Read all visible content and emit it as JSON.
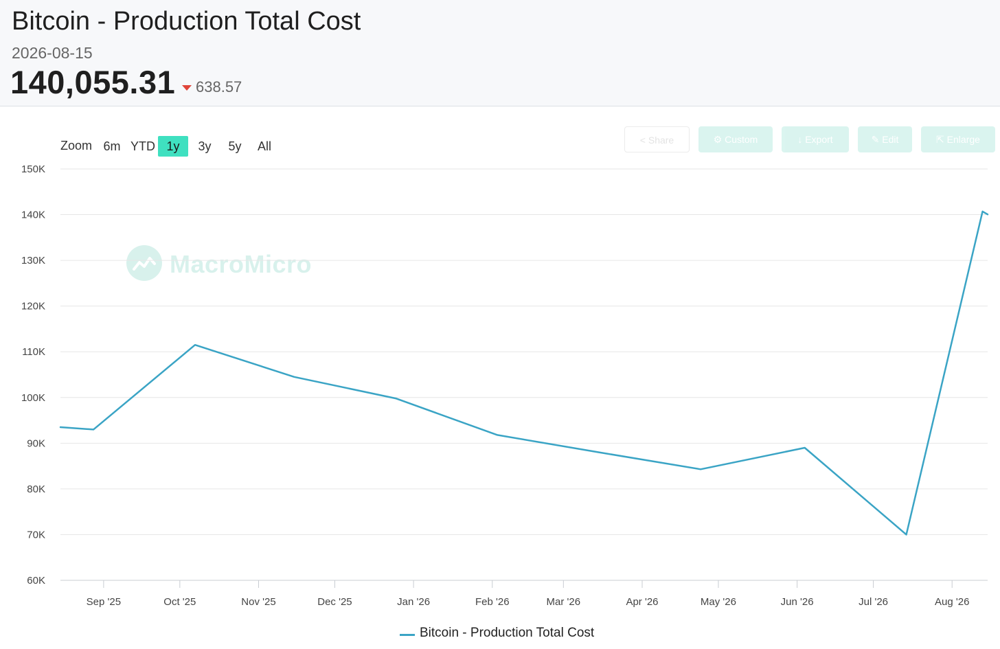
{
  "header": {
    "title": "Bitcoin - Production Total Cost",
    "date": "2026-08-15",
    "value": "140,055.31",
    "change": "638.57",
    "change_direction": "down",
    "change_color": "#e0453a"
  },
  "zoom": {
    "label": "Zoom",
    "options": [
      "6m",
      "YTD",
      "1y",
      "3y",
      "5y",
      "All"
    ],
    "selected": "1y",
    "active_color": "#3fe0c0"
  },
  "toolbar": {
    "buttons": [
      {
        "label": "Share",
        "icon": "share-icon"
      },
      {
        "label": "Custom",
        "icon": "gear-icon"
      },
      {
        "label": "Export",
        "icon": "download-icon"
      },
      {
        "label": "Edit",
        "icon": "pencil-icon"
      },
      {
        "label": "Enlarge",
        "icon": "expand-icon"
      }
    ]
  },
  "watermark": {
    "text": "MacroMicro",
    "icon": "macromicro-logo-icon"
  },
  "chart_data": {
    "type": "line",
    "title": "",
    "xlabel": "",
    "ylabel": "",
    "ylim": [
      60000,
      150000
    ],
    "y_ticks": [
      60000,
      70000,
      80000,
      90000,
      100000,
      110000,
      120000,
      130000,
      140000,
      150000
    ],
    "y_tick_labels": [
      "60K",
      "70K",
      "80K",
      "90K",
      "100K",
      "110K",
      "120K",
      "130K",
      "140K",
      "150K"
    ],
    "xlim": [
      "2025-08-15",
      "2026-08-15"
    ],
    "x_ticks": [
      "2025-09-01",
      "2025-10-01",
      "2025-11-01",
      "2025-12-01",
      "2026-01-01",
      "2026-02-01",
      "2026-03-01",
      "2026-04-01",
      "2026-05-01",
      "2026-06-01",
      "2026-07-01",
      "2026-08-01"
    ],
    "x_tick_labels": [
      "Sep '25",
      "Oct '25",
      "Nov '25",
      "Dec '25",
      "Jan '26",
      "Feb '26",
      "Mar '26",
      "Apr '26",
      "May '26",
      "Jun '26",
      "Jul '26",
      "Aug '26"
    ],
    "grid": true,
    "legend_position": "bottom-center",
    "series": [
      {
        "name": "Bitcoin - Production Total Cost",
        "color": "#3aa4c5",
        "x": [
          "2025-08-15",
          "2025-08-28",
          "2025-10-07",
          "2025-11-15",
          "2025-12-25",
          "2026-02-03",
          "2026-03-15",
          "2026-04-24",
          "2026-06-04",
          "2026-07-14",
          "2026-08-13",
          "2026-08-15"
        ],
        "y": [
          93500,
          93000,
          111500,
          104500,
          99800,
          91800,
          88000,
          84300,
          89000,
          70000,
          140700,
          140055.31
        ]
      }
    ]
  }
}
